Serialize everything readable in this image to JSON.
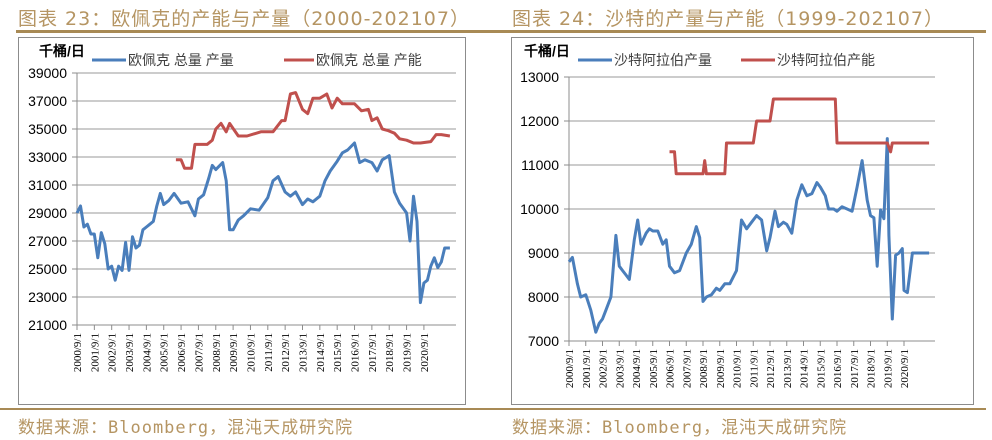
{
  "left": {
    "title": "图表 23：欧佩克的产能与产量（2000-202107）",
    "source": "数据来源：Bloomberg，混沌天成研究院",
    "unit_label": "千桶/日",
    "legend": [
      "欧佩克 总量 产量",
      "欧佩克 总量 产能"
    ]
  },
  "right": {
    "title": "图表 24：沙特的产量与产能（1999-202107）",
    "source": "数据来源：Bloomberg，混沌天成研究院",
    "unit_label": "千桶/日",
    "legend": [
      "沙特阿拉伯产量",
      "沙特阿拉伯产能"
    ]
  },
  "colors": {
    "production": "#4a7ebb",
    "capacity": "#c0504d",
    "accent": "#b59563"
  },
  "chart_data": [
    {
      "type": "line",
      "title": "图表 23：欧佩克的产能与产量（2000-202107）",
      "ylabel": "千桶/日",
      "xlabel": "",
      "ylim": [
        21000,
        39000
      ],
      "yticks": [
        21000,
        23000,
        25000,
        27000,
        29000,
        31000,
        33000,
        35000,
        37000,
        39000
      ],
      "categories": [
        "2000/9/1",
        "2001/9/1",
        "2002/9/1",
        "2003/9/1",
        "2004/9/1",
        "2005/9/1",
        "2006/9/1",
        "2007/9/1",
        "2008/9/1",
        "2009/9/1",
        "2010/9/1",
        "2011/9/1",
        "2012/9/1",
        "2013/9/1",
        "2014/9/1",
        "2015/9/1",
        "2016/9/1",
        "2017/9/1",
        "2018/9/1",
        "2019/9/1",
        "2020/9/1"
      ],
      "legend_position": "top",
      "grid": true,
      "series": [
        {
          "name": "欧佩克 总量 产量",
          "x": [
            2000.0,
            2000.2,
            2000.4,
            2000.6,
            2000.8,
            2001.0,
            2001.2,
            2001.4,
            2001.6,
            2001.8,
            2002.0,
            2002.2,
            2002.4,
            2002.6,
            2002.8,
            2003.0,
            2003.2,
            2003.4,
            2003.6,
            2003.8,
            2004.0,
            2004.2,
            2004.4,
            2004.6,
            2004.8,
            2005.0,
            2005.3,
            2005.6,
            2006.0,
            2006.4,
            2006.8,
            2007.0,
            2007.3,
            2007.6,
            2007.8,
            2008.0,
            2008.4,
            2008.6,
            2008.8,
            2009.0,
            2009.3,
            2009.6,
            2010.0,
            2010.5,
            2011.0,
            2011.3,
            2011.6,
            2012.0,
            2012.3,
            2012.6,
            2013.0,
            2013.3,
            2013.6,
            2014.0,
            2014.3,
            2014.6,
            2015.0,
            2015.3,
            2015.6,
            2016.0,
            2016.3,
            2016.6,
            2017.0,
            2017.3,
            2017.6,
            2018.0,
            2018.3,
            2018.6,
            2019.0,
            2019.2,
            2019.4,
            2019.6,
            2019.8,
            2020.0,
            2020.2,
            2020.4,
            2020.6,
            2020.8,
            2021.0,
            2021.2,
            2021.5
          ],
          "values": [
            29000,
            29500,
            28000,
            28200,
            27500,
            27500,
            25800,
            27600,
            26800,
            25000,
            25200,
            24200,
            25200,
            24900,
            26900,
            24900,
            27300,
            26500,
            26700,
            27800,
            28000,
            28200,
            28400,
            29500,
            30400,
            29600,
            29900,
            30400,
            29700,
            29800,
            28800,
            30000,
            30300,
            31500,
            32400,
            32100,
            32600,
            31300,
            27800,
            27800,
            28500,
            28800,
            29300,
            29200,
            30100,
            31300,
            31600,
            30500,
            30200,
            30500,
            29600,
            30000,
            29800,
            30200,
            31300,
            32000,
            32700,
            33300,
            33500,
            34000,
            32600,
            32800,
            32600,
            32000,
            32800,
            33100,
            30500,
            29700,
            29000,
            27000,
            30200,
            28400,
            22600,
            24000,
            24200,
            25200,
            25800,
            25100,
            25500,
            26500,
            26500
          ]
        },
        {
          "name": "欧佩克 总量 产能",
          "x": [
            2005.7,
            2006.0,
            2006.2,
            2006.6,
            2006.8,
            2007.5,
            2007.8,
            2008.0,
            2008.3,
            2008.6,
            2008.8,
            2009.3,
            2009.8,
            2010.6,
            2011.3,
            2011.8,
            2012.0,
            2012.3,
            2012.6,
            2013.0,
            2013.3,
            2013.6,
            2014.0,
            2014.4,
            2014.7,
            2015.0,
            2015.3,
            2015.6,
            2016.0,
            2016.4,
            2016.8,
            2017.0,
            2017.3,
            2017.6,
            2017.9,
            2018.3,
            2018.6,
            2019.0,
            2019.4,
            2019.8,
            2020.4,
            2020.7,
            2021.0,
            2021.5
          ],
          "values": [
            32800,
            32800,
            32200,
            32200,
            33900,
            33900,
            34200,
            35000,
            35400,
            34800,
            35400,
            34500,
            34500,
            34800,
            34800,
            35600,
            35600,
            37500,
            37600,
            36400,
            36100,
            37200,
            37200,
            37500,
            36500,
            37200,
            36800,
            36800,
            36800,
            36300,
            36400,
            35600,
            35800,
            35000,
            34900,
            34700,
            34300,
            34200,
            34000,
            34000,
            34100,
            34600,
            34600,
            34500
          ]
        }
      ]
    },
    {
      "type": "line",
      "title": "图表 24：沙特的产量与产能（1999-202107）",
      "ylabel": "千桶/日",
      "xlabel": "",
      "ylim": [
        7000,
        13000
      ],
      "yticks": [
        7000,
        8000,
        9000,
        10000,
        11000,
        12000,
        13000
      ],
      "categories": [
        "2000/9/1",
        "2001/9/1",
        "2002/9/1",
        "2003/9/1",
        "2004/9/1",
        "2005/9/1",
        "2006/9/1",
        "2007/9/1",
        "2008/9/1",
        "2009/9/1",
        "2010/9/1",
        "2011/9/1",
        "2012/9/1",
        "2013/9/1",
        "2014/9/1",
        "2015/9/1",
        "2016/9/1",
        "2017/9/1",
        "2018/9/1",
        "2019/9/1",
        "2020/9/1"
      ],
      "legend_position": "top",
      "grid": true,
      "series": [
        {
          "name": "沙特阿拉伯产量",
          "x": [
            2000.0,
            2000.2,
            2000.5,
            2000.7,
            2001.0,
            2001.3,
            2001.6,
            2001.8,
            2002.0,
            2002.2,
            2002.5,
            2002.8,
            2003.0,
            2003.2,
            2003.4,
            2003.6,
            2003.9,
            2004.1,
            2004.3,
            2004.6,
            2004.8,
            2005.0,
            2005.3,
            2005.6,
            2005.8,
            2006.0,
            2006.3,
            2006.6,
            2007.0,
            2007.3,
            2007.6,
            2007.8,
            2008.0,
            2008.2,
            2008.5,
            2008.8,
            2009.0,
            2009.3,
            2009.6,
            2010.0,
            2010.3,
            2010.6,
            2010.9,
            2011.2,
            2011.5,
            2011.8,
            2012.0,
            2012.3,
            2012.5,
            2012.8,
            2013.0,
            2013.3,
            2013.6,
            2013.9,
            2014.2,
            2014.5,
            2014.8,
            2015.0,
            2015.3,
            2015.5,
            2015.8,
            2016.0,
            2016.3,
            2016.6,
            2016.9,
            2017.2,
            2017.5,
            2017.8,
            2018.0,
            2018.2,
            2018.4,
            2018.6,
            2018.8,
            2019.0,
            2019.1,
            2019.3,
            2019.5,
            2019.7,
            2019.9,
            2020.0,
            2020.2,
            2020.5,
            2020.8,
            2021.0,
            2021.3,
            2021.5
          ],
          "values": [
            8800,
            8900,
            8300,
            8000,
            8050,
            7700,
            7200,
            7400,
            7500,
            7700,
            8000,
            9400,
            8700,
            8600,
            8500,
            8400,
            9300,
            9750,
            9200,
            9450,
            9550,
            9500,
            9500,
            9200,
            9300,
            8700,
            8550,
            8600,
            9000,
            9200,
            9600,
            9350,
            7900,
            8000,
            8050,
            8200,
            8150,
            8300,
            8300,
            8600,
            9750,
            9550,
            9700,
            9850,
            9750,
            9050,
            9350,
            9950,
            9600,
            9700,
            9650,
            9450,
            10200,
            10550,
            10300,
            10350,
            10600,
            10500,
            10300,
            10000,
            10000,
            9950,
            10050,
            10000,
            9950,
            10500,
            11100,
            10200,
            9850,
            9800,
            8700,
            9980,
            9780,
            11600,
            9400,
            7500,
            8950,
            9000,
            9100,
            8150,
            8100,
            9000,
            9000,
            9000,
            9000,
            9000
          ]
        },
        {
          "name": "沙特阿拉伯产能",
          "x": [
            2006.0,
            2006.3,
            2006.4,
            2007.0,
            2007.5,
            2008.0,
            2008.1,
            2008.2,
            2008.7,
            2009.3,
            2009.4,
            2010.0,
            2010.5,
            2011.0,
            2011.2,
            2012.0,
            2012.2,
            2013.0,
            2013.5,
            2014.0,
            2015.0,
            2015.9,
            2016.0,
            2017.0,
            2018.0,
            2019.0,
            2019.2,
            2019.3,
            2019.5,
            2020.0,
            2021.0,
            2021.5
          ],
          "values": [
            11300,
            11300,
            10800,
            10800,
            10800,
            10800,
            11100,
            10800,
            10800,
            10800,
            11500,
            11500,
            11500,
            11500,
            12000,
            12000,
            12500,
            12500,
            12500,
            12500,
            12500,
            12500,
            11500,
            11500,
            11500,
            11500,
            11300,
            11500,
            11500,
            11500,
            11500,
            11500
          ]
        }
      ]
    }
  ]
}
